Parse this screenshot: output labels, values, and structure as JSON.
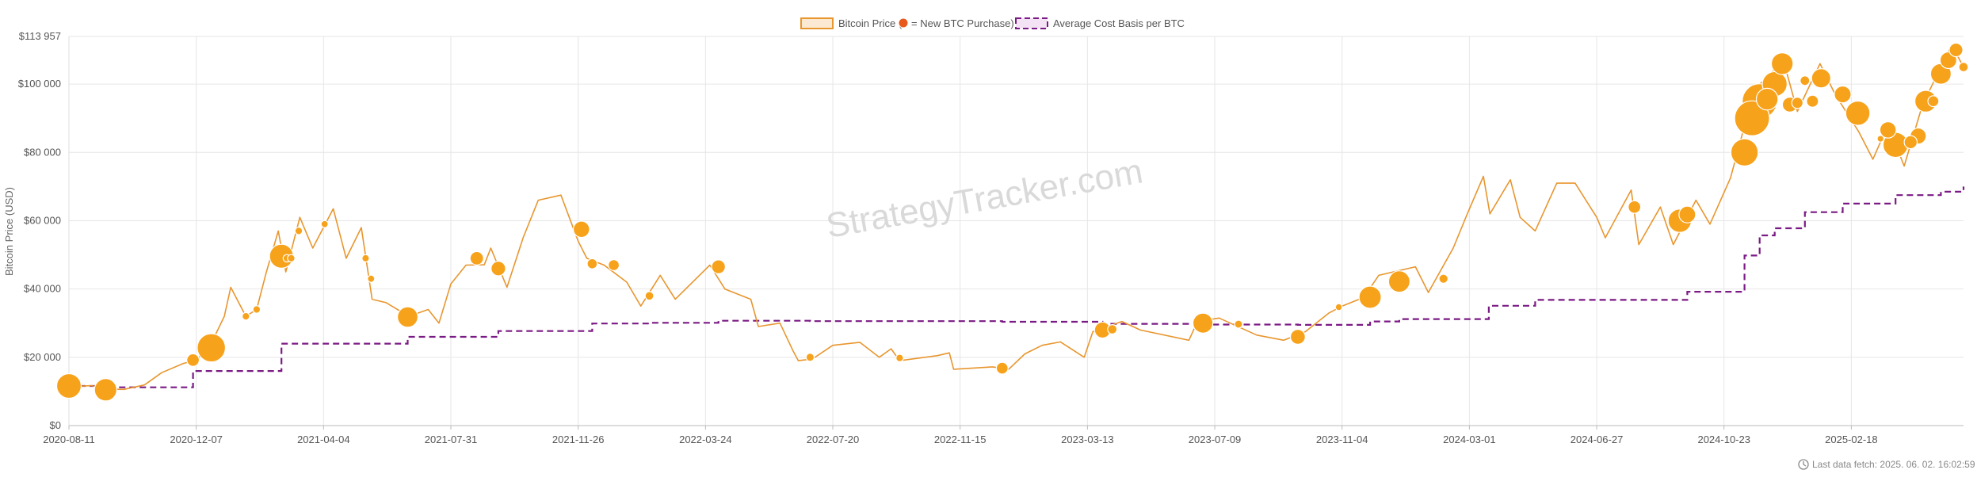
{
  "chart_data": {
    "type": "line",
    "title": "",
    "ylabel": "Bitcoin Price (USD)",
    "xlabel": "",
    "ylim": [
      0,
      113957
    ],
    "y_ticks": [
      {
        "value": 0,
        "label": "$0"
      },
      {
        "value": 20000,
        "label": "$20 000"
      },
      {
        "value": 40000,
        "label": "$40 000"
      },
      {
        "value": 60000,
        "label": "$60 000"
      },
      {
        "value": 80000,
        "label": "$80 000"
      },
      {
        "value": 100000,
        "label": "$100 000"
      },
      {
        "value": 113957,
        "label": "$113 957"
      }
    ],
    "x_range": [
      "2020-08-11",
      "2025-06-02"
    ],
    "x_ticks": [
      "2020-08-11",
      "2020-12-07",
      "2021-04-04",
      "2021-07-31",
      "2021-11-26",
      "2022-03-24",
      "2022-07-20",
      "2022-11-15",
      "2023-03-13",
      "2023-07-09",
      "2023-11-04",
      "2024-03-01",
      "2024-06-27",
      "2024-10-23",
      "2025-02-18"
    ],
    "grid": true,
    "legend_position": "top-center",
    "legend": {
      "price_label": "Bitcoin Price (",
      "price_label_suffix": "= New BTC Purchase)",
      "cost_label": "Average Cost Basis per BTC"
    },
    "colors": {
      "price": "#e8962e",
      "purchase": "#f7a21b",
      "purchase_legend": "#e8581c",
      "cost": "#7a1a84",
      "grid": "#e6e6e6"
    },
    "series": [
      {
        "name": "Bitcoin Price",
        "points": [
          [
            "2020-08-11",
            11400
          ],
          [
            "2020-09-01",
            11700
          ],
          [
            "2020-09-15",
            10700
          ],
          [
            "2020-10-01",
            10600
          ],
          [
            "2020-10-20",
            11900
          ],
          [
            "2020-11-05",
            15500
          ],
          [
            "2020-11-25",
            18200
          ],
          [
            "2020-12-07",
            19200
          ],
          [
            "2020-12-20",
            23500
          ],
          [
            "2021-01-02",
            32000
          ],
          [
            "2021-01-08",
            40500
          ],
          [
            "2021-01-22",
            32000
          ],
          [
            "2021-02-01",
            34000
          ],
          [
            "2021-02-10",
            45000
          ],
          [
            "2021-02-21",
            57000
          ],
          [
            "2021-02-28",
            45000
          ],
          [
            "2021-03-13",
            61000
          ],
          [
            "2021-03-25",
            52000
          ],
          [
            "2021-04-13",
            63500
          ],
          [
            "2021-04-25",
            49000
          ],
          [
            "2021-05-09",
            58000
          ],
          [
            "2021-05-19",
            37000
          ],
          [
            "2021-06-01",
            36000
          ],
          [
            "2021-06-22",
            32000
          ],
          [
            "2021-07-10",
            34000
          ],
          [
            "2021-07-20",
            30000
          ],
          [
            "2021-07-31",
            41500
          ],
          [
            "2021-08-14",
            47000
          ],
          [
            "2021-08-31",
            47100
          ],
          [
            "2021-09-06",
            52000
          ],
          [
            "2021-09-21",
            40500
          ],
          [
            "2021-10-06",
            55000
          ],
          [
            "2021-10-20",
            66000
          ],
          [
            "2021-11-10",
            67500
          ],
          [
            "2021-11-26",
            54000
          ],
          [
            "2021-12-04",
            49000
          ],
          [
            "2021-12-20",
            47000
          ],
          [
            "2022-01-10",
            42000
          ],
          [
            "2022-01-23",
            35000
          ],
          [
            "2022-02-10",
            44000
          ],
          [
            "2022-02-24",
            37000
          ],
          [
            "2022-03-28",
            47000
          ],
          [
            "2022-04-11",
            40000
          ],
          [
            "2022-05-05",
            37000
          ],
          [
            "2022-05-12",
            29000
          ],
          [
            "2022-06-01",
            30000
          ],
          [
            "2022-06-13",
            22000
          ],
          [
            "2022-06-18",
            19000
          ],
          [
            "2022-07-01",
            19500
          ],
          [
            "2022-07-20",
            23500
          ],
          [
            "2022-08-14",
            24400
          ],
          [
            "2022-09-01",
            20000
          ],
          [
            "2022-09-12",
            22500
          ],
          [
            "2022-09-20",
            19000
          ],
          [
            "2022-10-25",
            20500
          ],
          [
            "2022-11-05",
            21300
          ],
          [
            "2022-11-09",
            16500
          ],
          [
            "2022-12-15",
            17200
          ],
          [
            "2022-12-30",
            16500
          ],
          [
            "2023-01-14",
            21000
          ],
          [
            "2023-01-30",
            23500
          ],
          [
            "2023-02-16",
            24500
          ],
          [
            "2023-03-10",
            20000
          ],
          [
            "2023-03-18",
            27500
          ],
          [
            "2023-04-14",
            30500
          ],
          [
            "2023-05-01",
            28000
          ],
          [
            "2023-06-15",
            25000
          ],
          [
            "2023-06-23",
            30500
          ],
          [
            "2023-07-13",
            31500
          ],
          [
            "2023-08-17",
            26500
          ],
          [
            "2023-09-11",
            25000
          ],
          [
            "2023-10-01",
            27500
          ],
          [
            "2023-10-23",
            33000
          ],
          [
            "2023-11-04",
            35000
          ],
          [
            "2023-11-24",
            37500
          ],
          [
            "2023-12-08",
            44000
          ],
          [
            "2024-01-11",
            46500
          ],
          [
            "2024-01-23",
            39000
          ],
          [
            "2024-02-15",
            52000
          ],
          [
            "2024-02-28",
            62000
          ],
          [
            "2024-03-14",
            73000
          ],
          [
            "2024-03-20",
            62000
          ],
          [
            "2024-04-08",
            72000
          ],
          [
            "2024-04-17",
            61000
          ],
          [
            "2024-05-01",
            57000
          ],
          [
            "2024-05-21",
            71000
          ],
          [
            "2024-06-07",
            71000
          ],
          [
            "2024-06-27",
            61000
          ],
          [
            "2024-07-05",
            55000
          ],
          [
            "2024-07-29",
            69000
          ],
          [
            "2024-08-05",
            53000
          ],
          [
            "2024-08-25",
            64000
          ],
          [
            "2024-09-06",
            53000
          ],
          [
            "2024-09-27",
            66000
          ],
          [
            "2024-10-10",
            59000
          ],
          [
            "2024-10-29",
            72500
          ],
          [
            "2024-11-12",
            89000
          ],
          [
            "2024-11-22",
            99000
          ],
          [
            "2024-12-05",
            103000
          ],
          [
            "2024-12-17",
            107000
          ],
          [
            "2024-12-30",
            92000
          ],
          [
            "2025-01-20",
            106000
          ],
          [
            "2025-02-03",
            97000
          ],
          [
            "2025-02-25",
            86000
          ],
          [
            "2025-03-10",
            78000
          ],
          [
            "2025-03-24",
            88000
          ],
          [
            "2025-04-08",
            76000
          ],
          [
            "2025-04-25",
            94000
          ],
          [
            "2025-05-09",
            103000
          ],
          [
            "2025-05-22",
            111500
          ],
          [
            "2025-06-02",
            105000
          ]
        ]
      },
      {
        "name": "Average Cost Basis per BTC",
        "steps": [
          [
            "2020-08-11",
            11600
          ],
          [
            "2020-09-14",
            11200
          ],
          [
            "2020-12-04",
            16000
          ],
          [
            "2021-02-24",
            24000
          ],
          [
            "2021-06-21",
            26000
          ],
          [
            "2021-09-13",
            27700
          ],
          [
            "2021-12-09",
            29900
          ],
          [
            "2022-02-01",
            30100
          ],
          [
            "2022-04-05",
            30700
          ],
          [
            "2022-06-29",
            30600
          ],
          [
            "2022-12-24",
            30400
          ],
          [
            "2023-03-27",
            29800
          ],
          [
            "2023-06-28",
            29600
          ],
          [
            "2023-09-24",
            29500
          ],
          [
            "2023-11-30",
            30500
          ],
          [
            "2023-12-27",
            31200
          ],
          [
            "2024-03-19",
            35100
          ],
          [
            "2024-05-01",
            36800
          ],
          [
            "2024-08-01",
            36800
          ],
          [
            "2024-09-19",
            39200
          ],
          [
            "2024-11-11",
            49800
          ],
          [
            "2024-11-25",
            55700
          ],
          [
            "2024-12-09",
            57800
          ],
          [
            "2025-01-06",
            62500
          ],
          [
            "2025-02-10",
            65000
          ],
          [
            "2025-03-31",
            67500
          ],
          [
            "2025-05-12",
            68500
          ],
          [
            "2025-06-02",
            70000
          ]
        ]
      },
      {
        "name": "New BTC Purchase",
        "purchases": [
          [
            "2020-08-11",
            11600,
            21000
          ],
          [
            "2020-09-14",
            10500,
            16500
          ],
          [
            "2020-12-04",
            19200,
            3000
          ],
          [
            "2020-12-21",
            22800,
            29600
          ],
          [
            "2021-01-22",
            32000,
            300
          ],
          [
            "2021-02-01",
            34000,
            300
          ],
          [
            "2021-02-24",
            49600,
            19500
          ],
          [
            "2021-03-01",
            49000,
            300
          ],
          [
            "2021-03-05",
            49000,
            300
          ],
          [
            "2021-03-12",
            57000,
            300
          ],
          [
            "2021-04-05",
            59000,
            250
          ],
          [
            "2021-05-13",
            49000,
            270
          ],
          [
            "2021-05-18",
            43000,
            230
          ],
          [
            "2021-06-21",
            31800,
            13000
          ],
          [
            "2021-08-24",
            49000,
            3900
          ],
          [
            "2021-09-13",
            46000,
            5000
          ],
          [
            "2021-11-29",
            57500,
            7000
          ],
          [
            "2021-12-09",
            47400,
            1400
          ],
          [
            "2021-12-29",
            47000,
            1900
          ],
          [
            "2022-01-31",
            38000,
            660
          ],
          [
            "2022-04-05",
            46500,
            4200
          ],
          [
            "2022-06-29",
            20000,
            480
          ],
          [
            "2022-09-20",
            19800,
            300
          ],
          [
            "2022-12-24",
            16800,
            2400
          ],
          [
            "2023-03-27",
            28000,
            6500
          ],
          [
            "2023-04-05",
            28200,
            1000
          ],
          [
            "2023-06-28",
            30000,
            12300
          ],
          [
            "2023-07-31",
            29700,
            470
          ],
          [
            "2023-09-24",
            26000,
            5400
          ],
          [
            "2023-11-01",
            34700,
            155
          ],
          [
            "2023-11-30",
            37600,
            16100
          ],
          [
            "2023-12-27",
            42200,
            14600
          ],
          [
            "2024-02-06",
            43000,
            850
          ],
          [
            "2024-08-01",
            64000,
            3000
          ],
          [
            "2024-09-12",
            60000,
            18300
          ],
          [
            "2024-09-19",
            61800,
            7400
          ],
          [
            "2024-11-11",
            80000,
            27200
          ],
          [
            "2024-11-18",
            90000,
            51800
          ],
          [
            "2024-11-25",
            95000,
            55500
          ],
          [
            "2024-12-02",
            95600,
            15400
          ],
          [
            "2024-12-09",
            100000,
            21500
          ],
          [
            "2024-12-16",
            106000,
            15300
          ],
          [
            "2024-12-23",
            94000,
            5300
          ],
          [
            "2024-12-30",
            94500,
            2100
          ],
          [
            "2025-01-06",
            101000,
            1070
          ],
          [
            "2025-01-13",
            95000,
            2500
          ],
          [
            "2025-01-21",
            101700,
            11000
          ],
          [
            "2025-02-10",
            97000,
            7600
          ],
          [
            "2025-02-24",
            91500,
            20300
          ],
          [
            "2025-03-17",
            84000,
            130
          ],
          [
            "2025-03-24",
            86600,
            6900
          ],
          [
            "2025-03-31",
            82200,
            22000
          ],
          [
            "2025-04-14",
            83000,
            3500
          ],
          [
            "2025-04-21",
            84800,
            6600
          ],
          [
            "2025-04-28",
            95000,
            15400
          ],
          [
            "2025-05-05",
            95000,
            1900
          ],
          [
            "2025-05-12",
            103000,
            13400
          ],
          [
            "2025-05-19",
            107000,
            7400
          ],
          [
            "2025-05-26",
            110000,
            4000
          ],
          [
            "2025-06-02",
            105000,
            1000
          ]
        ]
      }
    ]
  },
  "watermark": "StrategyTracker.com",
  "footer": {
    "icon": "clock-icon",
    "text": "Last data fetch: 2025. 06. 02. 16:02:59"
  }
}
